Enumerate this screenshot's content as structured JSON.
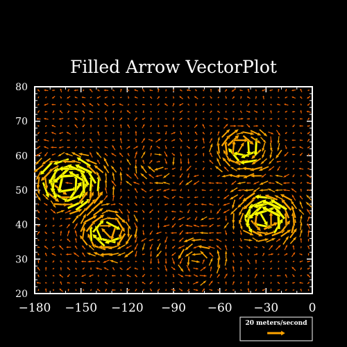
{
  "chart_data": {
    "type": "vector",
    "title": "Filled Arrow VectorPlot",
    "xlabel": "",
    "ylabel": "",
    "xlim": [
      -180,
      0
    ],
    "ylim": [
      20,
      80
    ],
    "x_ticks": [
      -180,
      -150,
      -120,
      -90,
      -60,
      -30,
      0
    ],
    "x_tick_labels": [
      "−180",
      "−150",
      "−120",
      "−90",
      "−60",
      "−30",
      "0"
    ],
    "y_ticks": [
      20,
      30,
      40,
      50,
      60,
      70,
      80
    ],
    "y_tick_labels": [
      "20",
      "30",
      "40",
      "50",
      "60",
      "70",
      "80"
    ],
    "grid": false,
    "field": {
      "x_count": 37,
      "y_count": 29,
      "vortices": [
        {
          "x": -158,
          "y": 52,
          "strength": 28,
          "radius": 12
        },
        {
          "x": -133,
          "y": 38,
          "strength": -22,
          "radius": 11
        },
        {
          "x": -45,
          "y": 62,
          "strength": -22,
          "radius": 11
        },
        {
          "x": -30,
          "y": 42,
          "strength": 26,
          "radius": 12
        },
        {
          "x": -75,
          "y": 30,
          "strength": 12,
          "radius": 14
        },
        {
          "x": -100,
          "y": 58,
          "strength": -8,
          "radius": 16
        }
      ],
      "background_u": -1.5,
      "background_v": 0.5,
      "noise": 4
    },
    "colors": {
      "slow": "#ff6a00",
      "mid": "#ffa500",
      "fast": "#ffff00",
      "axes": "#ffffff",
      "background": "#000000"
    },
    "legend": {
      "label": "20 meters/second",
      "reference_magnitude": 20,
      "position": "bottom-right"
    }
  }
}
